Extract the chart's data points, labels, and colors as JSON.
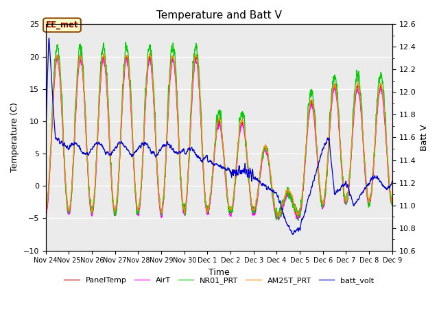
{
  "title": "Temperature and Batt V",
  "xlabel": "Time",
  "ylabel_left": "Temperature (C)",
  "ylabel_right": "Batt V",
  "ylim_left": [
    -10,
    25
  ],
  "ylim_right": [
    10.6,
    12.6
  ],
  "x_tick_labels": [
    "Nov 24",
    "Nov 25",
    "Nov 26",
    "Nov 27",
    "Nov 28",
    "Nov 29",
    "Nov 30",
    "Dec 1",
    "Dec 2",
    "Dec 3",
    "Dec 4",
    "Dec 5",
    "Dec 6",
    "Dec 7",
    "Dec 8",
    "Dec 9"
  ],
  "annotation_text": "EE_met",
  "bg_color": "#ebebeb",
  "legend_entries": [
    "PanelTemp",
    "AirT",
    "NR01_PRT",
    "AM25T_PRT",
    "batt_volt"
  ],
  "line_colors": [
    "#cc0000",
    "#ff00ff",
    "#00cc00",
    "#ff8800",
    "#0000cc"
  ],
  "title_fontsize": 11,
  "tick_fontsize": 8,
  "figsize": [
    6.4,
    4.8
  ],
  "dpi": 100
}
